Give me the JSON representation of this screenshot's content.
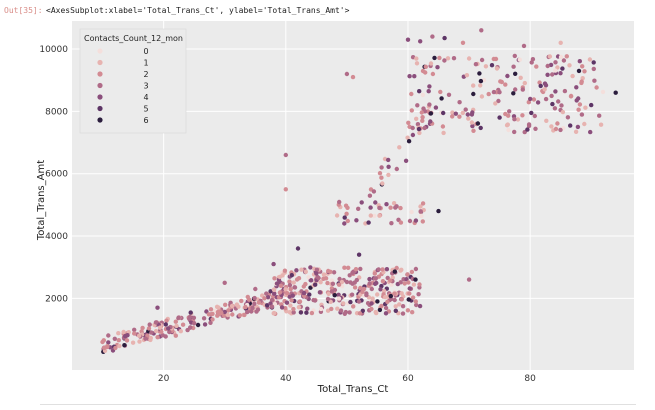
{
  "cell": {
    "out_prompt": "Out[35]:",
    "output_repr": "<AxesSubplot:xlabel='Total_Trans_Ct', ylabel='Total_Trans_Amt'>"
  },
  "chart_data": {
    "type": "scatter",
    "title": "",
    "xlabel": "Total_Trans_Ct",
    "ylabel": "Total_Trans_Amt",
    "xlim": [
      5,
      97
    ],
    "ylim": [
      -300,
      10900
    ],
    "xticks": [
      20,
      40,
      60,
      80
    ],
    "yticks": [
      2000,
      4000,
      6000,
      8000,
      10000
    ],
    "grid": true,
    "background": "#ebebeb",
    "legend": {
      "title": "Contacts_Count_12_mon",
      "placement": "top-left",
      "labels": [
        "0",
        "1",
        "2",
        "3",
        "4",
        "5",
        "6"
      ]
    },
    "palette": [
      "#f4dfdc",
      "#e7b3b0",
      "#d38b93",
      "#b06b88",
      "#8a4e7c",
      "#5d3566",
      "#2b1d3d"
    ],
    "clusters": [
      {
        "x": [
          10,
          40
        ],
        "y": [
          500,
          2100
        ],
        "n": 220,
        "trend": "rising"
      },
      {
        "x": [
          38,
          62
        ],
        "y": [
          1500,
          3000
        ],
        "n": 320,
        "trend": "flat"
      },
      {
        "x": [
          48,
          63
        ],
        "y": [
          4400,
          5100
        ],
        "n": 45,
        "trend": "flat"
      },
      {
        "x": [
          60,
          92
        ],
        "y": [
          7300,
          9800
        ],
        "n": 200,
        "trend": "flat"
      },
      {
        "x": [
          53,
          64
        ],
        "y": [
          5200,
          8000
        ],
        "n": 30,
        "trend": "rising"
      }
    ],
    "points": [
      {
        "x": 10,
        "y": 600,
        "c": 2
      },
      {
        "x": 12,
        "y": 700,
        "c": 3
      },
      {
        "x": 14,
        "y": 650,
        "c": 2
      },
      {
        "x": 16,
        "y": 800,
        "c": 1
      },
      {
        "x": 18,
        "y": 900,
        "c": 3
      },
      {
        "x": 19,
        "y": 1700,
        "c": 4
      },
      {
        "x": 22,
        "y": 800,
        "c": 2
      },
      {
        "x": 25,
        "y": 1200,
        "c": 3
      },
      {
        "x": 28,
        "y": 1500,
        "c": 2
      },
      {
        "x": 30,
        "y": 2500,
        "c": 3
      },
      {
        "x": 32,
        "y": 1800,
        "c": 1
      },
      {
        "x": 35,
        "y": 2300,
        "c": 3
      },
      {
        "x": 38,
        "y": 3100,
        "c": 4
      },
      {
        "x": 40,
        "y": 6600,
        "c": 3
      },
      {
        "x": 40,
        "y": 5500,
        "c": 2
      },
      {
        "x": 42,
        "y": 3600,
        "c": 5
      },
      {
        "x": 45,
        "y": 2800,
        "c": 4
      },
      {
        "x": 48,
        "y": 2100,
        "c": 6
      },
      {
        "x": 50,
        "y": 9200,
        "c": 3
      },
      {
        "x": 51,
        "y": 9100,
        "c": 2
      },
      {
        "x": 52,
        "y": 3400,
        "c": 5
      },
      {
        "x": 55,
        "y": 1900,
        "c": 6
      },
      {
        "x": 58,
        "y": 1600,
        "c": 5
      },
      {
        "x": 60,
        "y": 10300,
        "c": 4
      },
      {
        "x": 62,
        "y": 10250,
        "c": 4
      },
      {
        "x": 64,
        "y": 10400,
        "c": 3
      },
      {
        "x": 66,
        "y": 10350,
        "c": 5
      },
      {
        "x": 69,
        "y": 10200,
        "c": 2
      },
      {
        "x": 72,
        "y": 10600,
        "c": 3
      },
      {
        "x": 79,
        "y": 10100,
        "c": 3
      },
      {
        "x": 85,
        "y": 10200,
        "c": 1
      },
      {
        "x": 88,
        "y": 9300,
        "c": 6
      },
      {
        "x": 90,
        "y": 8200,
        "c": 5
      },
      {
        "x": 94,
        "y": 8600,
        "c": 6
      },
      {
        "x": 65,
        "y": 4800,
        "c": 6
      },
      {
        "x": 70,
        "y": 2600,
        "c": 3
      },
      {
        "x": 75,
        "y": 7800,
        "c": 5
      },
      {
        "x": 80,
        "y": 8400,
        "c": 4
      }
    ]
  }
}
